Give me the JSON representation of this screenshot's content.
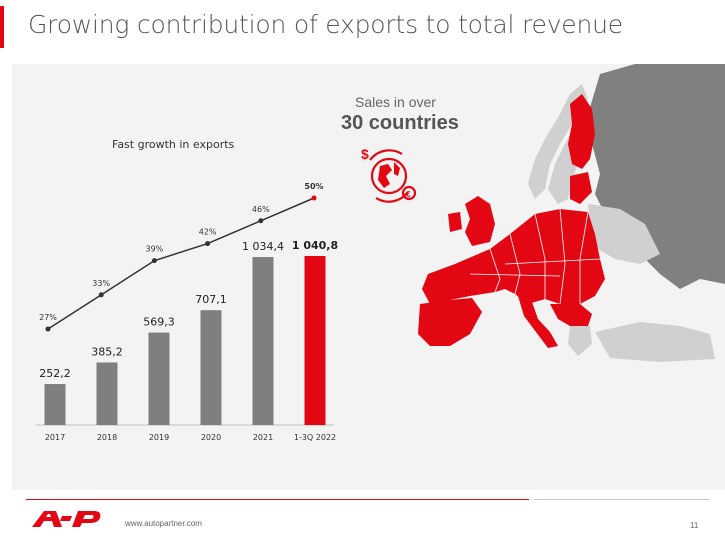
{
  "slide": {
    "title": "Growing contribution of exports to total revenue",
    "sales_line": "Sales in over",
    "countries_line": "30 countries",
    "footer_url": "www.autopartner.com",
    "page_number": "11"
  },
  "colors": {
    "accent": "#e30613",
    "bar_grey": "#7f7f7f",
    "map_grey_dark": "#808080",
    "map_grey_light": "#d0d0d0"
  },
  "chart_data": {
    "type": "bar",
    "title": "Fast growth in exports",
    "categories": [
      "2017",
      "2018",
      "2019",
      "2020",
      "2021",
      "1-3Q 2022"
    ],
    "series": [
      {
        "values": [
          252.2,
          385.2,
          569.3,
          707.1,
          1034.4,
          1040.8
        ],
        "labels": [
          "252,2",
          "385,2",
          "569,3",
          "707,1",
          "1 034,4",
          "1 040,8"
        ]
      }
    ],
    "line_series": {
      "values": [
        27,
        33,
        39,
        42,
        46,
        50
      ],
      "labels": [
        "27%",
        "33%",
        "39%",
        "42%",
        "46%",
        "50%"
      ]
    },
    "highlight_index": 5,
    "ylim": [
      0,
      1040.8
    ],
    "grid": false
  }
}
